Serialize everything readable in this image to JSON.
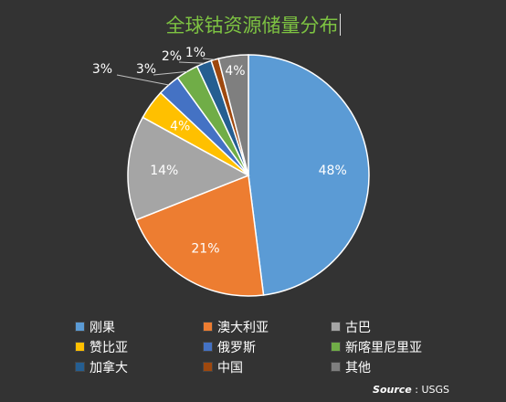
{
  "chart_data": {
    "type": "pie",
    "title": "全球钴资源储量分布",
    "categories": [
      "刚果",
      "澳大利亚",
      "古巴",
      "赞比亚",
      "俄罗斯",
      "新喀里尼里亚",
      "加拿大",
      "中国",
      "其他"
    ],
    "values": [
      48,
      21,
      14,
      4,
      3,
      3,
      2,
      1,
      4
    ],
    "data_labels": [
      "48%",
      "21%",
      "14%",
      "4%",
      "3%",
      "3%",
      "2%",
      "1%",
      "4%"
    ],
    "colors": [
      "#5b9bd5",
      "#ed7d31",
      "#a5a5a5",
      "#ffc000",
      "#4472c4",
      "#70ad47",
      "#255e91",
      "#9e480e",
      "#7f7f7f"
    ],
    "legend_placement": "bottom",
    "source_label": "Source",
    "source_value": ": USGS"
  }
}
